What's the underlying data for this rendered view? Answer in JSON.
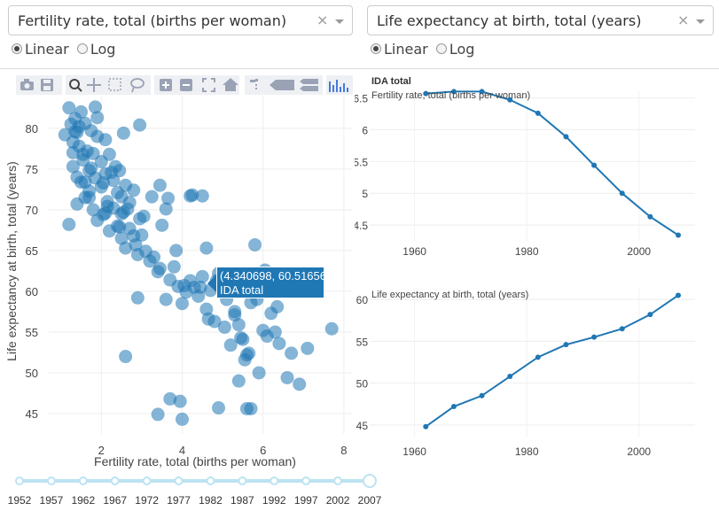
{
  "controls": {
    "x_select": {
      "value": "Fertility rate, total (births per woman)",
      "clear": "×"
    },
    "y_select": {
      "value": "Life expectancy at birth, total (years)",
      "clear": "×"
    },
    "x_scale": {
      "options": [
        "Linear",
        "Log"
      ],
      "selected": "Linear"
    },
    "y_scale": {
      "options": [
        "Linear",
        "Log"
      ],
      "selected": "Linear"
    }
  },
  "toolbar": {
    "icons": [
      "camera-icon",
      "save-icon",
      "zoom-icon",
      "pan-icon",
      "box-select-icon",
      "lasso-icon",
      "zoom-in-icon",
      "zoom-out-icon",
      "autoscale-icon",
      "reset-axes-icon",
      "spike-lines-icon",
      "hover-closest-icon",
      "hover-compare-icon",
      "plotly-logo-icon"
    ]
  },
  "tooltip": {
    "coords": "(4.340698, 60.51656)",
    "name": "IDA total"
  },
  "slider": {
    "years": [
      "1952",
      "1957",
      "1962",
      "1967",
      "1972",
      "1977",
      "1982",
      "1987",
      "1992",
      "1997",
      "2002",
      "2007"
    ],
    "selected": "2007"
  },
  "colors": {
    "marker": "#1f77b4",
    "tooltip": "#1f77b4",
    "slider": "#bce3f2"
  },
  "chart_data": [
    {
      "type": "scatter",
      "title": "",
      "xlabel": "Fertility rate, total (births per woman)",
      "ylabel": "Life expectancy at birth, total (years)",
      "xlim": [
        0.7,
        8.2
      ],
      "ylim": [
        42.5,
        84
      ],
      "xticks": [
        "2",
        "4",
        "6",
        "8"
      ],
      "yticks": [
        "45",
        "50",
        "55",
        "60",
        "65",
        "70",
        "75",
        "80"
      ],
      "grid": true,
      "x": [
        1.1,
        1.2,
        1.25,
        1.3,
        1.3,
        1.35,
        1.4,
        1.4,
        1.45,
        1.5,
        1.5,
        1.55,
        1.6,
        1.6,
        1.65,
        1.7,
        1.7,
        1.75,
        1.8,
        1.8,
        1.85,
        1.9,
        1.9,
        2.0,
        2.0,
        2.05,
        2.1,
        2.1,
        2.15,
        2.2,
        2.2,
        2.3,
        2.3,
        2.35,
        2.4,
        2.4,
        2.45,
        2.5,
        2.5,
        2.55,
        2.6,
        2.6,
        2.7,
        2.7,
        2.8,
        2.8,
        2.9,
        2.95,
        3.0,
        3.1,
        3.2,
        3.3,
        3.4,
        3.5,
        3.6,
        3.7,
        3.8,
        3.9,
        4.0,
        4.1,
        4.2,
        4.3,
        4.4,
        4.5,
        4.6,
        4.7,
        4.8,
        4.9,
        5.0,
        5.1,
        5.2,
        5.3,
        5.4,
        5.5,
        5.6,
        5.7,
        5.8,
        5.9,
        6.0,
        6.1,
        6.2,
        6.3,
        6.4,
        6.6,
        6.7,
        6.9,
        7.1,
        7.7,
        1.3,
        1.45,
        1.6,
        1.75,
        1.9,
        2.05,
        2.25,
        2.45,
        2.65,
        2.85,
        3.05,
        3.25,
        3.45,
        3.65,
        3.85,
        4.05,
        4.25,
        4.45,
        4.65,
        4.85,
        5.05,
        5.25,
        5.45,
        5.65,
        5.85,
        6.05,
        6.25,
        1.35,
        1.55,
        1.85,
        2.15,
        2.55,
        2.95,
        3.45,
        3.95,
        4.5,
        5.3,
        5.55,
        5.7,
        6.35,
        2.6,
        3.4,
        3.7,
        4.0,
        4.9,
        5.6,
        1.2,
        1.4,
        1.7,
        2.1,
        2.5,
        2.9,
        3.6,
        4.2,
        4.6,
        5.4
      ],
      "y": [
        79.2,
        82.5,
        80.5,
        78.3,
        75.3,
        81.2,
        74.0,
        79.5,
        77.8,
        82.0,
        73.4,
        76.1,
        80.6,
        71.5,
        77.2,
        74.8,
        72.3,
        79.7,
        76.9,
        70.0,
        73.9,
        81.3,
        68.7,
        75.9,
        72.8,
        69.4,
        78.6,
        74.4,
        71.0,
        76.8,
        67.4,
        73.6,
        70.2,
        75.3,
        72.1,
        68.0,
        74.8,
        66.5,
        71.6,
        69.7,
        73.0,
        65.3,
        70.9,
        67.7,
        66.8,
        72.4,
        64.5,
        68.9,
        66.9,
        64.9,
        63.7,
        64.2,
        62.4,
        68.1,
        70.1,
        61.4,
        63.0,
        60.6,
        58.5,
        59.9,
        61.3,
        60.5,
        59.4,
        71.7,
        57.8,
        60.1,
        56.3,
        62.2,
        61.5,
        59.0,
        53.4,
        57.5,
        55.9,
        54.1,
        52.2,
        58.6,
        65.7,
        50.0,
        55.2,
        54.5,
        57.3,
        55.0,
        53.6,
        49.4,
        52.4,
        48.6,
        53.0,
        55.4,
        77.0,
        80.2,
        73.4,
        75.1,
        79.0,
        73.3,
        74.6,
        67.9,
        70.1,
        65.7,
        69.2,
        71.6,
        62.8,
        71.4,
        65.0,
        60.7,
        71.8,
        60.5,
        56.6,
        61.3,
        55.6,
        60.3,
        54.3,
        52.4,
        59.0,
        62.6,
        61.4,
        79.6,
        76.8,
        82.6,
        70.4,
        79.4,
        80.4,
        73.0,
        46.5,
        61.8,
        57.1,
        51.6,
        45.6,
        58.1,
        52.0,
        44.9,
        46.8,
        44.3,
        45.7,
        45.6,
        68.2,
        70.7,
        71.5,
        69.6,
        69.5,
        59.2,
        59.0,
        71.7,
        65.3,
        49.0
      ]
    },
    {
      "type": "line",
      "title": "IDA total",
      "subtitle": "Fertility rate, total (births per woman)",
      "xlim": [
        1952,
        2010
      ],
      "ylim": [
        4.25,
        6.62
      ],
      "xticks": [
        "1960",
        "1980",
        "2000"
      ],
      "yticks": [
        "4.5",
        "5",
        "5.5",
        "6",
        "6.5"
      ],
      "x": [
        1962,
        1967,
        1972,
        1977,
        1982,
        1987,
        1992,
        1997,
        2002,
        2007
      ],
      "y": [
        6.57,
        6.6,
        6.6,
        6.47,
        6.26,
        5.89,
        5.44,
        5.0,
        4.63,
        4.34
      ]
    },
    {
      "type": "line",
      "title": "",
      "subtitle": "Life expectancy at birth, total (years)",
      "xlim": [
        1952,
        2010
      ],
      "ylim": [
        43.5,
        61.5
      ],
      "xticks": [
        "1960",
        "1980",
        "2000"
      ],
      "yticks": [
        "45",
        "50",
        "55",
        "60"
      ],
      "x": [
        1962,
        1967,
        1972,
        1977,
        1982,
        1987,
        1992,
        1997,
        2002,
        2007
      ],
      "y": [
        44.8,
        47.2,
        48.5,
        50.8,
        53.1,
        54.6,
        55.5,
        56.5,
        58.2,
        60.5
      ]
    }
  ]
}
